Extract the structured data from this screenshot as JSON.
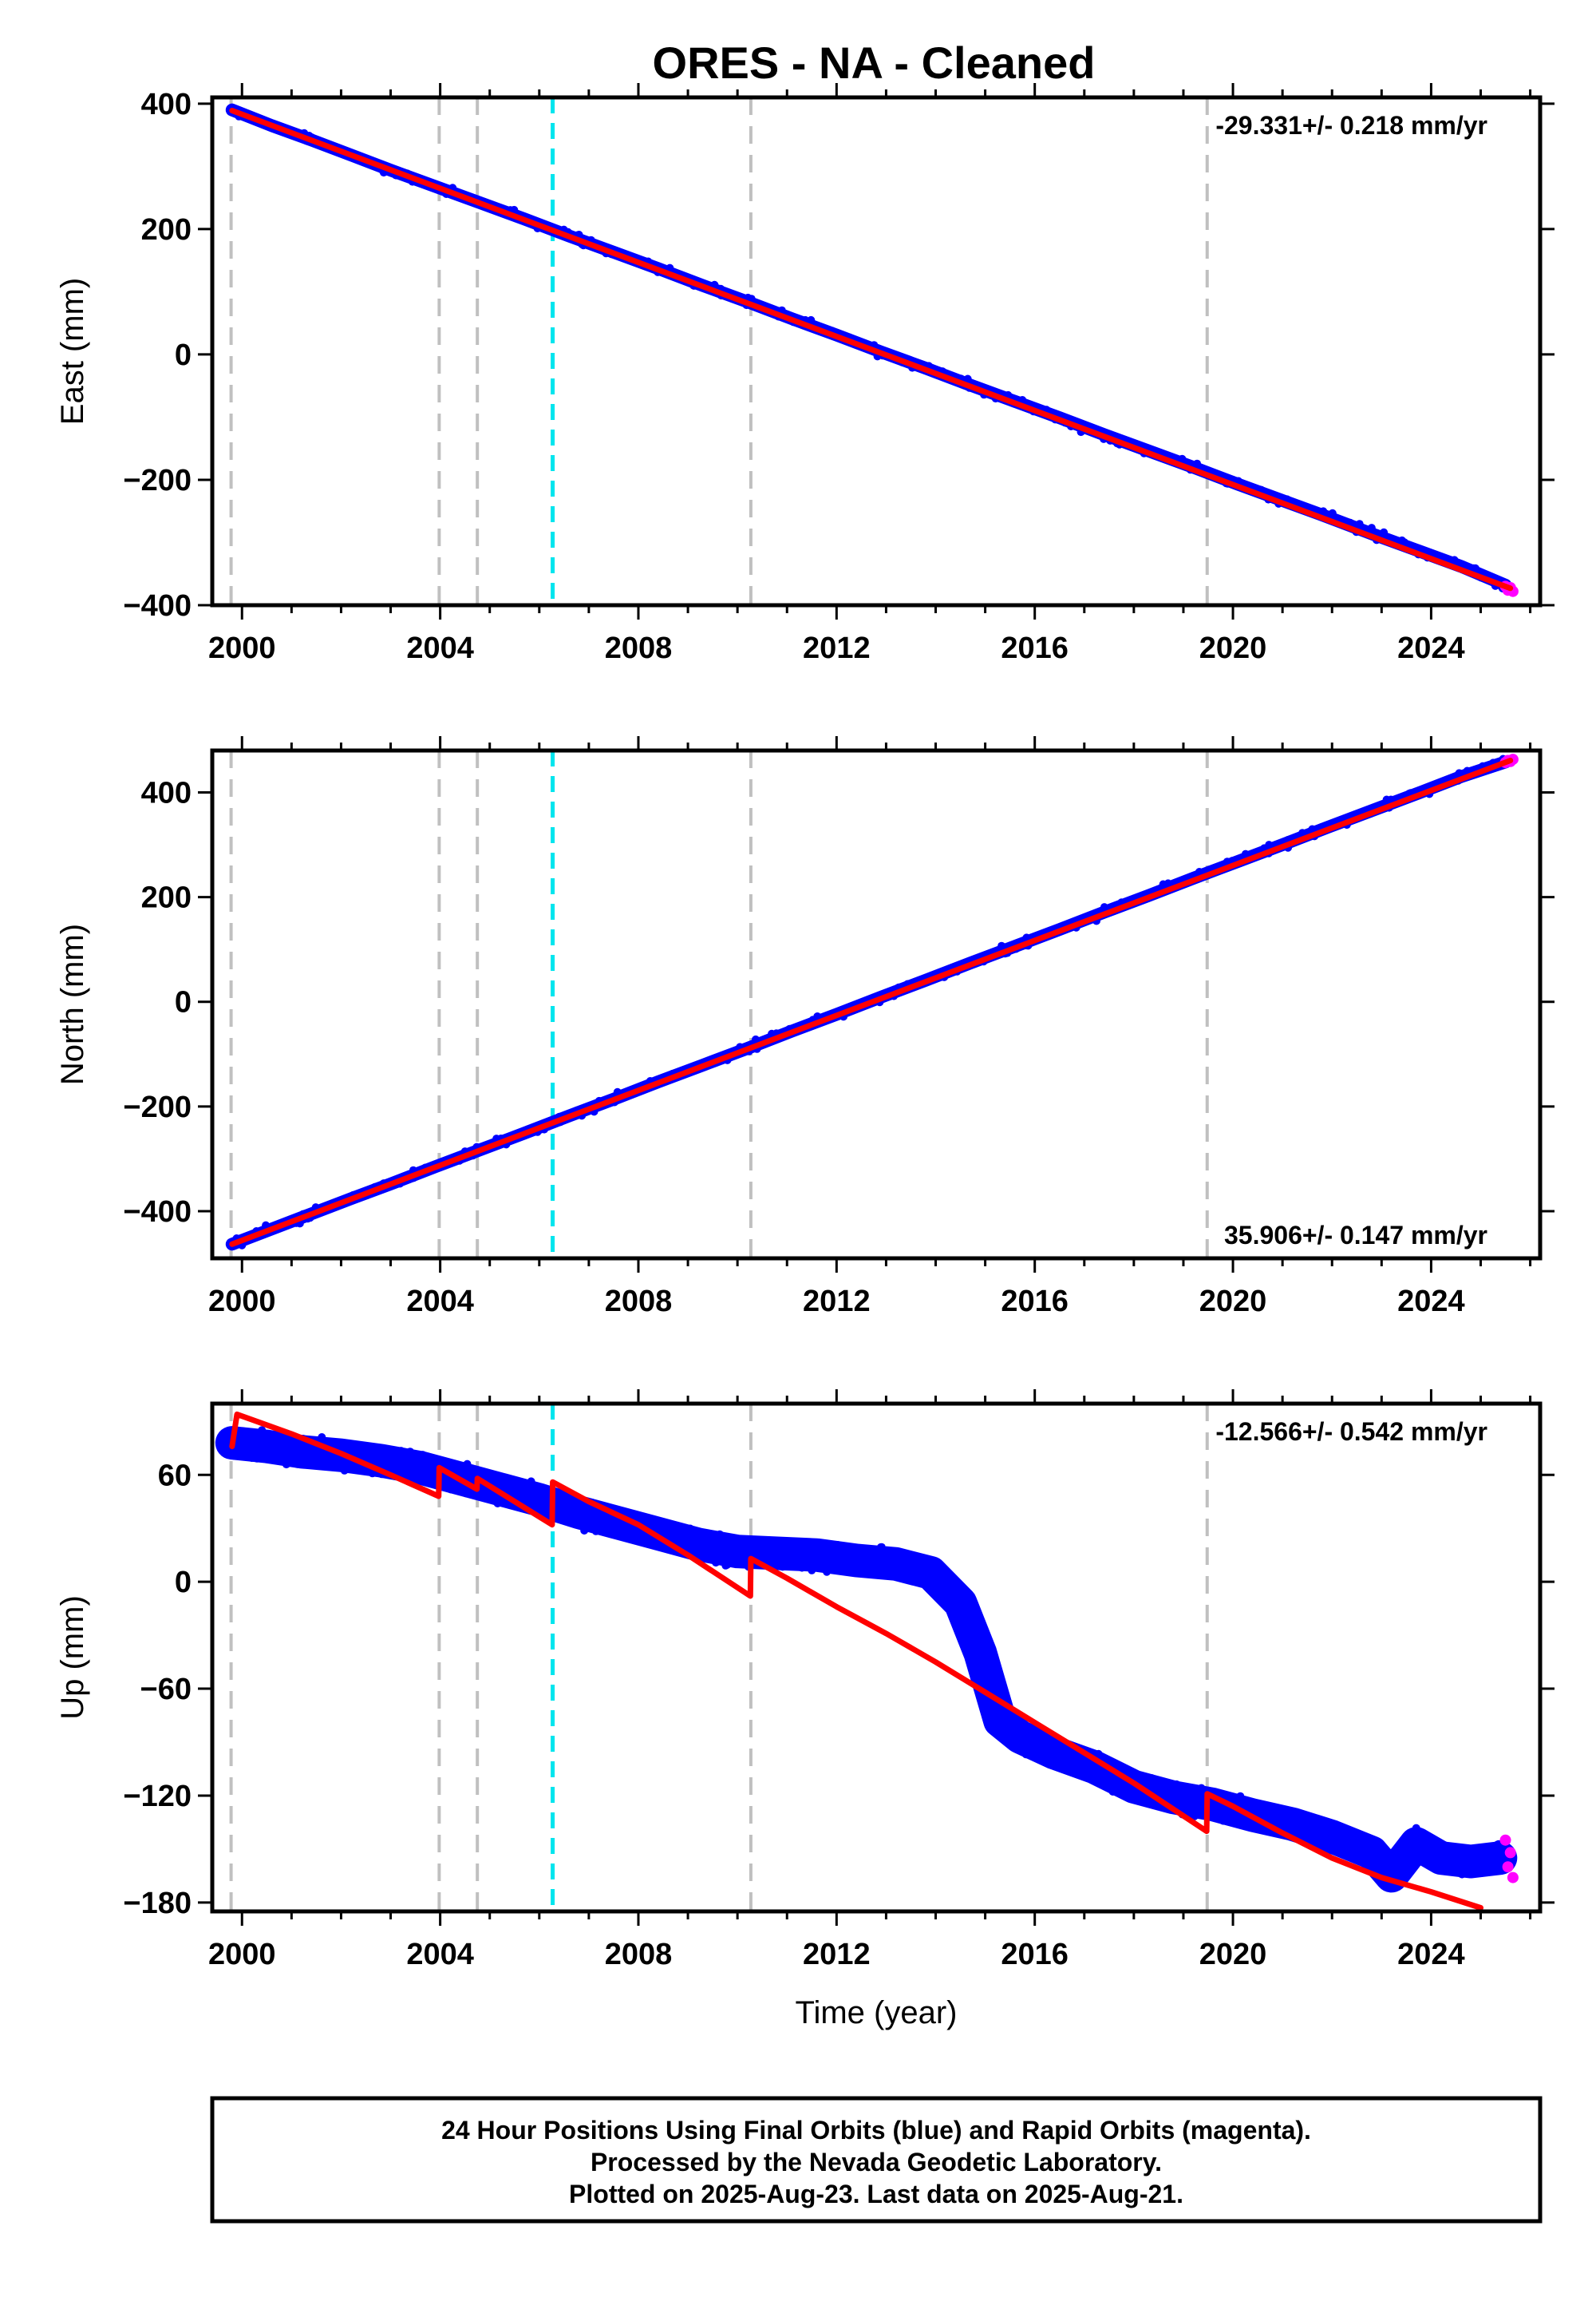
{
  "colors": {
    "final_orbits": "#0000ff",
    "rapid_orbits": "#ff00ff",
    "model": "#ff0000",
    "event_gray": "#c0c0c0",
    "event_cyan": "#00e5ee",
    "frame": "#000000"
  },
  "chart_data": [
    {
      "type": "scatter",
      "title": "ORES  - NA - Cleaned",
      "xlabel": "",
      "ylabel": "East (mm)",
      "xlim": [
        1999.4,
        2026.2
      ],
      "ylim": [
        -400,
        410
      ],
      "x_ticks": [
        2000,
        2004,
        2008,
        2012,
        2016,
        2020,
        2024
      ],
      "y_ticks": [
        400,
        200,
        0,
        -200,
        -400
      ],
      "y_tick_labels": [
        "400",
        "200",
        "0",
        "−200",
        "−400"
      ],
      "rate_label": "-29.331+/- 0.218 mm/yr",
      "rate_position": "top-right",
      "event_lines": [
        {
          "x": 1999.78,
          "style": "gray"
        },
        {
          "x": 2003.98,
          "style": "gray"
        },
        {
          "x": 2004.75,
          "style": "gray"
        },
        {
          "x": 2006.27,
          "style": "cyan"
        },
        {
          "x": 2010.27,
          "style": "gray"
        },
        {
          "x": 2019.48,
          "style": "gray"
        }
      ],
      "series": [
        {
          "style": "final_orbits",
          "x": [
            1999.8,
            2000.6,
            2001.4,
            2002.2,
            2003.0,
            2003.9,
            2004.8,
            2005.7,
            2006.6,
            2007.5,
            2008.4,
            2009.3,
            2010.2,
            2011.1,
            2012.0,
            2012.9,
            2013.8,
            2014.7,
            2015.6,
            2016.5,
            2017.4,
            2018.3,
            2019.2,
            2020.1,
            2021.0,
            2021.9,
            2022.8,
            2023.7,
            2024.6,
            2025.5
          ],
          "values": [
            390,
            365,
            342,
            318,
            294,
            268,
            242,
            216,
            189,
            163,
            137,
            110,
            84,
            57,
            31,
            4,
            -22,
            -49,
            -75,
            -101,
            -128,
            -154,
            -180,
            -207,
            -233,
            -259,
            -286,
            -312,
            -338,
            -368
          ]
        },
        {
          "style": "rapid_orbits",
          "x": [
            2025.5,
            2025.55,
            2025.6,
            2025.65
          ],
          "values": [
            -370,
            -376,
            -372,
            -378
          ]
        },
        {
          "style": "model",
          "x": [
            1999.8,
            2025.6
          ],
          "values": [
            389,
            -373
          ]
        }
      ]
    },
    {
      "type": "scatter",
      "xlabel": "",
      "ylabel": "North (mm)",
      "xlim": [
        1999.4,
        2026.2
      ],
      "ylim": [
        -490,
        480
      ],
      "x_ticks": [
        2000,
        2004,
        2008,
        2012,
        2016,
        2020,
        2024
      ],
      "y_ticks": [
        400,
        200,
        0,
        -200,
        -400
      ],
      "y_tick_labels": [
        "400",
        "200",
        "0",
        "−200",
        "−400"
      ],
      "rate_label": "35.906+/- 0.147 mm/yr",
      "rate_position": "bottom-right",
      "event_lines": [
        {
          "x": 1999.78,
          "style": "gray"
        },
        {
          "x": 2003.98,
          "style": "gray"
        },
        {
          "x": 2004.75,
          "style": "gray"
        },
        {
          "x": 2006.27,
          "style": "cyan"
        },
        {
          "x": 2010.27,
          "style": "gray"
        },
        {
          "x": 2019.48,
          "style": "gray"
        }
      ],
      "series": [
        {
          "style": "final_orbits",
          "x": [
            1999.8,
            2000.6,
            2001.4,
            2002.2,
            2003.0,
            2003.9,
            2004.8,
            2005.7,
            2006.6,
            2007.5,
            2008.4,
            2009.3,
            2010.2,
            2011.1,
            2012.0,
            2012.9,
            2013.8,
            2014.7,
            2015.6,
            2016.5,
            2017.4,
            2018.3,
            2019.2,
            2020.1,
            2021.0,
            2021.9,
            2022.8,
            2023.7,
            2024.6,
            2025.5
          ],
          "values": [
            -463,
            -434,
            -405,
            -376,
            -348,
            -315,
            -283,
            -251,
            -218,
            -186,
            -153,
            -121,
            -89,
            -56,
            -24,
            9,
            41,
            74,
            106,
            138,
            171,
            203,
            236,
            268,
            300,
            333,
            365,
            397,
            430,
            458
          ]
        },
        {
          "style": "rapid_orbits",
          "x": [
            2025.5,
            2025.55,
            2025.6,
            2025.65
          ],
          "values": [
            457,
            461,
            459,
            463
          ]
        },
        {
          "style": "model",
          "x": [
            1999.8,
            2025.6
          ],
          "values": [
            -463,
            461
          ]
        }
      ]
    },
    {
      "type": "scatter",
      "xlabel": "Time (year)",
      "ylabel": "Up (mm)",
      "xlim": [
        1999.4,
        2026.2
      ],
      "ylim": [
        -185,
        100
      ],
      "x_ticks": [
        2000,
        2004,
        2008,
        2012,
        2016,
        2020,
        2024
      ],
      "y_ticks": [
        60,
        0,
        -60,
        -120,
        -180
      ],
      "y_tick_labels": [
        "60",
        "0",
        "−60",
        "−120",
        "−180"
      ],
      "rate_label": "-12.566+/- 0.542 mm/yr",
      "rate_position": "top-right",
      "event_lines": [
        {
          "x": 1999.78,
          "style": "gray"
        },
        {
          "x": 2003.98,
          "style": "gray"
        },
        {
          "x": 2004.75,
          "style": "gray"
        },
        {
          "x": 2006.27,
          "style": "cyan"
        },
        {
          "x": 2010.27,
          "style": "gray"
        },
        {
          "x": 2019.48,
          "style": "gray"
        }
      ],
      "series": [
        {
          "style": "final_orbits",
          "x": [
            1999.8,
            2000.5,
            2001.2,
            2002.0,
            2002.8,
            2003.6,
            2004.4,
            2005.2,
            2006.0,
            2006.8,
            2007.6,
            2008.4,
            2009.2,
            2010.0,
            2010.8,
            2011.6,
            2012.4,
            2013.2,
            2013.9,
            2014.5,
            2014.9,
            2015.3,
            2015.7,
            2016.4,
            2017.2,
            2018.0,
            2018.8,
            2019.6,
            2020.4,
            2021.2,
            2022.0,
            2022.8,
            2023.2,
            2023.7,
            2024.2,
            2024.8,
            2025.4
          ],
          "values": [
            78,
            76,
            73,
            71,
            68,
            64,
            58,
            52,
            46,
            39,
            33,
            27,
            21,
            17,
            16,
            15,
            12,
            10,
            5,
            -12,
            -40,
            -78,
            -87,
            -96,
            -104,
            -115,
            -121,
            -125,
            -131,
            -136,
            -143,
            -152,
            -165,
            -147,
            -155,
            -157,
            -155
          ]
        },
        {
          "style": "rapid_orbits",
          "x": [
            2025.5,
            2025.55,
            2025.6,
            2025.65
          ],
          "values": [
            -145,
            -160,
            -152,
            -166
          ]
        },
        {
          "style": "model",
          "x": [
            1999.8,
            1999.9,
            2001.0,
            2002.0,
            2003.0,
            2003.97,
            2003.98,
            2004.74,
            2004.75,
            2006.26,
            2006.27,
            2007.0,
            2008.0,
            2009.0,
            2010.26,
            2010.27,
            2011.0,
            2012.0,
            2013.0,
            2014.0,
            2015.0,
            2016.0,
            2017.0,
            2018.0,
            2019.47,
            2019.48,
            2020.0,
            2021.0,
            2022.0,
            2023.0,
            2024.0,
            2025.0
          ],
          "values": [
            76,
            94,
            83,
            72,
            60,
            48,
            64,
            52,
            58,
            32,
            56,
            45,
            32,
            15,
            -8,
            13,
            2,
            -14,
            -29,
            -45,
            -62,
            -79,
            -96,
            -113,
            -140,
            -119,
            -126,
            -141,
            -155,
            -166,
            -174,
            -183
          ]
        }
      ]
    }
  ],
  "footer": {
    "lines": [
      "24 Hour Positions Using Final Orbits (blue) and Rapid Orbits (magenta).",
      "Processed by the Nevada Geodetic Laboratory.",
      "Plotted on 2025-Aug-23. Last data on 2025-Aug-21."
    ]
  }
}
